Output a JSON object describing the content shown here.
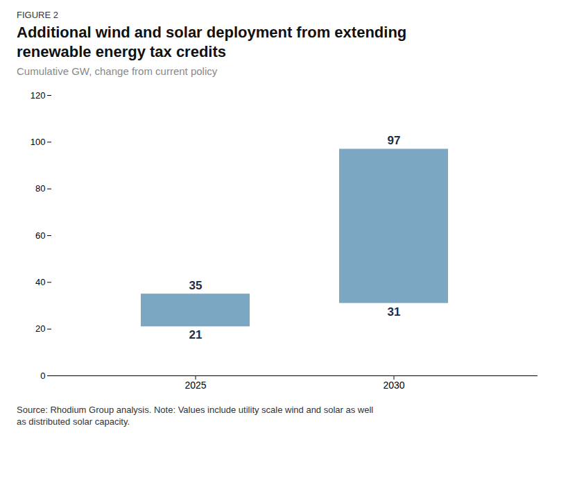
{
  "chart_data": {
    "type": "range_bar",
    "figure_label": "FIGURE 2",
    "title": "Additional wind and solar deployment from extending\nrenewable energy tax credits",
    "subtitle": "Cumulative GW, change from current policy",
    "source": "Source: Rhodium Group analysis. Note: Values include utility scale wind and solar as well\nas distributed solar capacity.",
    "categories": [
      "2025",
      "2030"
    ],
    "low": [
      21,
      31
    ],
    "high": [
      35,
      97
    ],
    "color": "#7ba7c2",
    "ylim": [
      0,
      120
    ],
    "yticks": [
      0,
      20,
      40,
      60,
      80,
      100,
      120
    ],
    "grid": false,
    "data_labels": true
  }
}
